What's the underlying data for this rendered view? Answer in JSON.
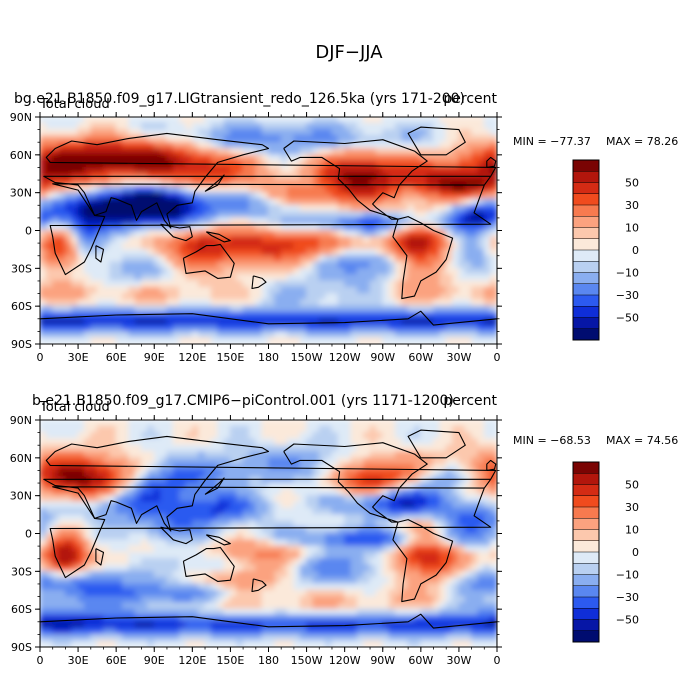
{
  "chart_data": {
    "type": "heatmap",
    "title": "DJF−JJA",
    "xticks": [
      "0",
      "30E",
      "60E",
      "90E",
      "120E",
      "150E",
      "180",
      "150W",
      "120W",
      "90W",
      "60W",
      "30W",
      "0"
    ],
    "yticks": [
      "90N",
      "60N",
      "30N",
      "0",
      "30S",
      "60S",
      "90S"
    ],
    "colorbar_labels": [
      "50",
      "30",
      "10",
      "0",
      "−10",
      "−30",
      "−50"
    ],
    "colorbar_levels": [
      60,
      50,
      40,
      30,
      20,
      10,
      5,
      0,
      -5,
      -10,
      -20,
      -30,
      -40,
      -50,
      -60
    ],
    "colors": [
      "#7a0403",
      "#b2160c",
      "#d42b14",
      "#f04b1e",
      "#f77a4f",
      "#fba27f",
      "#fcc8ad",
      "#fbe9da",
      "#deeaf7",
      "#b9d0f1",
      "#8aaef0",
      "#5a87f0",
      "#2c5af0",
      "#0f2ed8",
      "#0616a6",
      "#000c70"
    ],
    "panels": [
      {
        "left_title": "bg.e21.B1850.f09_g17.LIGtransient_redo_126.5ka (yrs 171-200)",
        "sub_left": "Total cloud",
        "right_title": "percent",
        "min_label": "MIN = −77.37",
        "max_label": "MAX =  78.26"
      },
      {
        "left_title": "b.e21.B1850.f09_g17.CMIP6−piControl.001 (yrs 1171-1200)",
        "sub_left": "Total cloud",
        "right_title": "percent",
        "min_label": "MIN = −68.53",
        "max_label": "MAX =  74.56"
      }
    ]
  }
}
